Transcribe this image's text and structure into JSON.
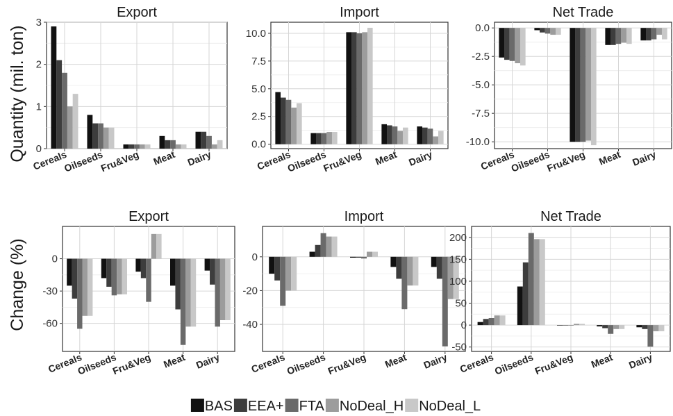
{
  "colors": {
    "BAS": "#111111",
    "EEA+": "#3d3d3d",
    "FTA": "#6a6a6a",
    "NoDeal_H": "#9c9c9c",
    "NoDeal_L": "#c8c8c8"
  },
  "labels": {
    "ylabel_top": "Quantity (mil. ton)",
    "ylabel_bottom": "Change (%)"
  },
  "legend": [
    "BAS",
    "EEA+",
    "FTA",
    "NoDeal_H",
    "NoDeal_L"
  ],
  "chart_data": [
    {
      "type": "bar",
      "title": "Export",
      "categories": [
        "Cereals",
        "Oilseeds",
        "Fru&Veg",
        "Meat",
        "Dairy"
      ],
      "ylim": [
        0,
        3
      ],
      "yticks": [
        0,
        1,
        2,
        3
      ],
      "grid": true,
      "series": [
        {
          "name": "BAS",
          "values": [
            2.9,
            0.8,
            0.1,
            0.3,
            0.4
          ]
        },
        {
          "name": "EEA+",
          "values": [
            2.1,
            0.6,
            0.1,
            0.2,
            0.4
          ]
        },
        {
          "name": "FTA",
          "values": [
            1.8,
            0.6,
            0.1,
            0.2,
            0.3
          ]
        },
        {
          "name": "NoDeal_H",
          "values": [
            1.0,
            0.5,
            0.1,
            0.1,
            0.1
          ]
        },
        {
          "name": "NoDeal_L",
          "values": [
            1.3,
            0.5,
            0.1,
            0.1,
            0.2
          ]
        }
      ]
    },
    {
      "type": "bar",
      "title": "Import",
      "categories": [
        "Cereals",
        "Oilseeds",
        "Fru&Veg",
        "Meat",
        "Dairy"
      ],
      "ylim": [
        -0.4,
        11
      ],
      "yticks": [
        0.0,
        2.5,
        5.0,
        7.5,
        10.0
      ],
      "grid": true,
      "series": [
        {
          "name": "BAS",
          "values": [
            4.7,
            1.0,
            10.1,
            1.8,
            1.6
          ]
        },
        {
          "name": "EEA+",
          "values": [
            4.2,
            1.0,
            10.1,
            1.7,
            1.5
          ]
        },
        {
          "name": "FTA",
          "values": [
            4.0,
            1.0,
            10.0,
            1.6,
            1.4
          ]
        },
        {
          "name": "NoDeal_H",
          "values": [
            3.3,
            1.1,
            10.1,
            1.2,
            0.7
          ]
        },
        {
          "name": "NoDeal_L",
          "values": [
            3.7,
            1.1,
            10.5,
            1.5,
            1.2
          ]
        }
      ]
    },
    {
      "type": "bar",
      "title": "Net Trade",
      "categories": [
        "Cereals",
        "Oilseeds",
        "Fru&Veg",
        "Meat",
        "Dairy"
      ],
      "ylim": [
        -10.6,
        0.5
      ],
      "yticks": [
        0.0,
        -2.5,
        -5.0,
        -7.5,
        -10.0
      ],
      "grid": true,
      "series": [
        {
          "name": "BAS",
          "values": [
            -2.6,
            -0.2,
            -10.0,
            -1.5,
            -1.1
          ]
        },
        {
          "name": "EEA+",
          "values": [
            -2.8,
            -0.4,
            -10.0,
            -1.5,
            -1.1
          ]
        },
        {
          "name": "FTA",
          "values": [
            -2.9,
            -0.5,
            -10.0,
            -1.4,
            -1.0
          ]
        },
        {
          "name": "NoDeal_H",
          "values": [
            -3.1,
            -0.6,
            -9.9,
            -1.3,
            -0.6
          ]
        },
        {
          "name": "NoDeal_L",
          "values": [
            -3.3,
            -0.6,
            -10.3,
            -1.4,
            -1.0
          ]
        }
      ]
    },
    {
      "type": "bar",
      "title": "Export",
      "categories": [
        "Cereals",
        "Oilseeds",
        "Fru&Veg",
        "Meat",
        "Dairy"
      ],
      "ylim": [
        -86,
        30
      ],
      "yticks": [
        0,
        -30,
        -60
      ],
      "grid": true,
      "series": [
        {
          "name": "BAS",
          "values": [
            -25,
            -18,
            -12,
            -25,
            -11
          ]
        },
        {
          "name": "EEA+",
          "values": [
            -37,
            -26,
            -18,
            -47,
            -24
          ]
        },
        {
          "name": "FTA",
          "values": [
            -65,
            -34,
            -40,
            -80,
            -63
          ]
        },
        {
          "name": "NoDeal_H",
          "values": [
            -53,
            -33,
            23,
            -63,
            -57
          ]
        },
        {
          "name": "NoDeal_L",
          "values": [
            -53,
            -33,
            23,
            -63,
            -57
          ]
        }
      ]
    },
    {
      "type": "bar",
      "title": "Import",
      "categories": [
        "Cereals",
        "Oilseeds",
        "Fru&Veg",
        "Meat",
        "Dairy"
      ],
      "ylim": [
        -56,
        18
      ],
      "yticks": [
        0,
        -20,
        -40
      ],
      "grid": true,
      "series": [
        {
          "name": "BAS",
          "values": [
            -10,
            3,
            -0.5,
            -6,
            -6
          ]
        },
        {
          "name": "EEA+",
          "values": [
            -14,
            7,
            -0.5,
            -13,
            -13
          ]
        },
        {
          "name": "FTA",
          "values": [
            -29,
            14,
            -1,
            -31,
            -53
          ]
        },
        {
          "name": "NoDeal_H",
          "values": [
            -20,
            12,
            3,
            -17,
            -25
          ]
        },
        {
          "name": "NoDeal_L",
          "values": [
            -20,
            12,
            3,
            -17,
            -25
          ]
        }
      ]
    },
    {
      "type": "bar",
      "title": "Net Trade",
      "categories": [
        "Cereals",
        "Oilseeds",
        "Fru&Veg",
        "Meat",
        "Dairy"
      ],
      "ylim": [
        -60,
        225
      ],
      "yticks": [
        -50,
        0,
        50,
        100,
        150,
        200
      ],
      "grid": true,
      "series": [
        {
          "name": "BAS",
          "values": [
            7,
            88,
            0,
            -3,
            -5
          ]
        },
        {
          "name": "EEA+",
          "values": [
            14,
            143,
            0,
            -7,
            -9
          ]
        },
        {
          "name": "FTA",
          "values": [
            16,
            210,
            0,
            -20,
            -49
          ]
        },
        {
          "name": "NoDeal_H",
          "values": [
            22,
            196,
            3,
            -9,
            -14
          ]
        },
        {
          "name": "NoDeal_L",
          "values": [
            22,
            196,
            3,
            -9,
            -14
          ]
        }
      ]
    }
  ]
}
